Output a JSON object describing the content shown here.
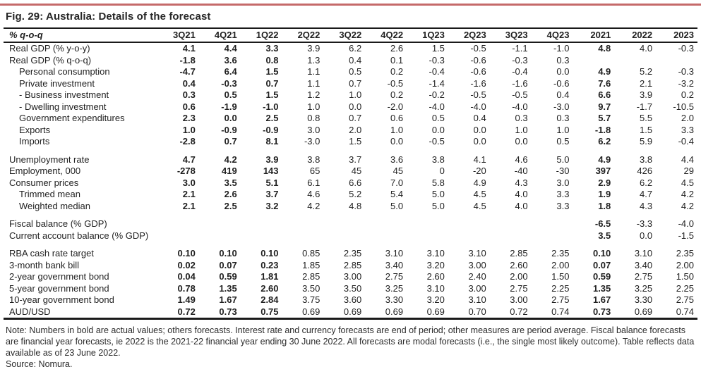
{
  "page": {
    "title": "Fig. 29: Australia: Details of the forecast",
    "note": "Note: Numbers in bold are actual values; others forecasts. Interest rate and currency forecasts are end of period; other measures are period average. Fiscal balance forecasts are financial year forecasts, ie 2022 is the 2021-22 financial year ending 30 June 2022. All forecasts are modal forecasts (i.e., the single most likely outcome). Table reflects data available as of 23 June 2022.",
    "source": "Source: Nomura."
  },
  "colors": {
    "accent_line": "#c56a6a",
    "text": "#1f1f1f",
    "table_border": "#1a1a1a"
  },
  "table": {
    "corner_label": "% q-o-q",
    "columns": [
      "3Q21",
      "4Q21",
      "1Q22",
      "2Q22",
      "3Q22",
      "4Q22",
      "1Q23",
      "2Q23",
      "3Q23",
      "4Q23",
      "2021",
      "2022",
      "2023"
    ],
    "bold_column_indexes": [
      0,
      1,
      2,
      10
    ],
    "sections": [
      {
        "rows": [
          {
            "label": "Real GDP (% y-o-y)",
            "indent": 0,
            "values": [
              "4.1",
              "4.4",
              "3.3",
              "3.9",
              "6.2",
              "2.6",
              "1.5",
              "-0.5",
              "-1.1",
              "-1.0",
              "4.8",
              "4.0",
              "-0.3"
            ]
          },
          {
            "label": "Real GDP (% q-o-q)",
            "indent": 0,
            "values": [
              "-1.8",
              "3.6",
              "0.8",
              "1.3",
              "0.4",
              "0.1",
              "-0.3",
              "-0.6",
              "-0.3",
              "0.3",
              "",
              "",
              ""
            ]
          },
          {
            "label": "Personal consumption",
            "indent": 1,
            "values": [
              "-4.7",
              "6.4",
              "1.5",
              "1.1",
              "0.5",
              "0.2",
              "-0.4",
              "-0.6",
              "-0.4",
              "0.0",
              "4.9",
              "5.2",
              "-0.3"
            ]
          },
          {
            "label": "Private investment",
            "indent": 1,
            "values": [
              "0.4",
              "-0.3",
              "0.7",
              "1.1",
              "0.7",
              "-0.5",
              "-1.4",
              "-1.6",
              "-1.6",
              "-0.6",
              "7.6",
              "2.1",
              "-3.2"
            ]
          },
          {
            "label": "- Business investment",
            "indent": 1,
            "values": [
              "0.3",
              "0.5",
              "1.5",
              "1.2",
              "1.0",
              "0.2",
              "-0.2",
              "-0.5",
              "-0.5",
              "0.4",
              "6.6",
              "3.9",
              "0.2"
            ]
          },
          {
            "label": "- Dwelling investment",
            "indent": 1,
            "values": [
              "0.6",
              "-1.9",
              "-1.0",
              "1.0",
              "0.0",
              "-2.0",
              "-4.0",
              "-4.0",
              "-4.0",
              "-3.0",
              "9.7",
              "-1.7",
              "-10.5"
            ]
          },
          {
            "label": "Government expenditures",
            "indent": 1,
            "values": [
              "2.3",
              "0.0",
              "2.5",
              "0.8",
              "0.7",
              "0.6",
              "0.5",
              "0.4",
              "0.3",
              "0.3",
              "5.7",
              "5.5",
              "2.0"
            ]
          },
          {
            "label": "Exports",
            "indent": 1,
            "values": [
              "1.0",
              "-0.9",
              "-0.9",
              "3.0",
              "2.0",
              "1.0",
              "0.0",
              "0.0",
              "1.0",
              "1.0",
              "-1.8",
              "1.5",
              "3.3"
            ]
          },
          {
            "label": "Imports",
            "indent": 1,
            "values": [
              "-2.8",
              "0.7",
              "8.1",
              "-3.0",
              "1.5",
              "0.0",
              "-0.5",
              "0.0",
              "0.0",
              "0.5",
              "6.2",
              "5.9",
              "-0.4"
            ]
          }
        ]
      },
      {
        "rows": [
          {
            "label": "Unemployment rate",
            "indent": 0,
            "values": [
              "4.7",
              "4.2",
              "3.9",
              "3.8",
              "3.7",
              "3.6",
              "3.8",
              "4.1",
              "4.6",
              "5.0",
              "4.9",
              "3.8",
              "4.4"
            ]
          },
          {
            "label": "Employment, 000",
            "indent": 0,
            "values": [
              "-278",
              "419",
              "143",
              "65",
              "45",
              "45",
              "0",
              "-20",
              "-40",
              "-30",
              "397",
              "426",
              "29"
            ]
          },
          {
            "label": "Consumer prices",
            "indent": 0,
            "values": [
              "3.0",
              "3.5",
              "5.1",
              "6.1",
              "6.6",
              "7.0",
              "5.8",
              "4.9",
              "4.3",
              "3.0",
              "2.9",
              "6.2",
              "4.5"
            ]
          },
          {
            "label": "Trimmed mean",
            "indent": 1,
            "values": [
              "2.1",
              "2.6",
              "3.7",
              "4.6",
              "5.2",
              "5.4",
              "5.0",
              "4.5",
              "4.0",
              "3.3",
              "1.9",
              "4.7",
              "4.2"
            ]
          },
          {
            "label": "Weighted median",
            "indent": 1,
            "values": [
              "2.1",
              "2.5",
              "3.2",
              "4.2",
              "4.8",
              "5.0",
              "5.0",
              "4.5",
              "4.0",
              "3.3",
              "1.8",
              "4.3",
              "4.2"
            ]
          }
        ]
      },
      {
        "rows": [
          {
            "label": "Fiscal balance (% GDP)",
            "indent": 0,
            "values": [
              "",
              "",
              "",
              "",
              "",
              "",
              "",
              "",
              "",
              "",
              "-6.5",
              "-3.3",
              "-4.0"
            ]
          },
          {
            "label": "Current account balance (% GDP)",
            "indent": 0,
            "values": [
              "",
              "",
              "",
              "",
              "",
              "",
              "",
              "",
              "",
              "",
              "3.5",
              "0.0",
              "-1.5"
            ]
          }
        ]
      },
      {
        "rows": [
          {
            "label": "RBA cash rate target",
            "indent": 0,
            "values": [
              "0.10",
              "0.10",
              "0.10",
              "0.85",
              "2.35",
              "3.10",
              "3.10",
              "3.10",
              "2.85",
              "2.35",
              "0.10",
              "3.10",
              "2.35"
            ]
          },
          {
            "label": "3-month bank bill",
            "indent": 0,
            "values": [
              "0.02",
              "0.07",
              "0.23",
              "1.85",
              "2.85",
              "3.40",
              "3.20",
              "3.00",
              "2.60",
              "2.00",
              "0.07",
              "3.40",
              "2.00"
            ]
          },
          {
            "label": "2-year government bond",
            "indent": 0,
            "values": [
              "0.04",
              "0.59",
              "1.81",
              "2.85",
              "3.00",
              "2.75",
              "2.60",
              "2.40",
              "2.00",
              "1.50",
              "0.59",
              "2.75",
              "1.50"
            ]
          },
          {
            "label": "5-year government bond",
            "indent": 0,
            "values": [
              "0.78",
              "1.35",
              "2.60",
              "3.50",
              "3.50",
              "3.25",
              "3.10",
              "3.00",
              "2.75",
              "2.25",
              "1.35",
              "3.25",
              "2.25"
            ]
          },
          {
            "label": "10-year government bond",
            "indent": 0,
            "values": [
              "1.49",
              "1.67",
              "2.84",
              "3.75",
              "3.60",
              "3.30",
              "3.20",
              "3.10",
              "3.00",
              "2.75",
              "1.67",
              "3.30",
              "2.75"
            ]
          },
          {
            "label": "AUD/USD",
            "indent": 0,
            "values": [
              "0.72",
              "0.73",
              "0.75",
              "0.69",
              "0.69",
              "0.69",
              "0.69",
              "0.70",
              "0.72",
              "0.74",
              "0.73",
              "0.69",
              "0.74"
            ]
          }
        ]
      }
    ]
  }
}
